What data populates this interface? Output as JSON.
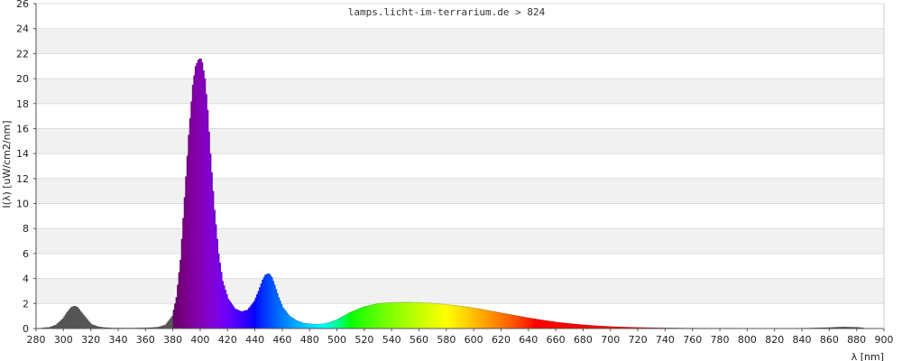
{
  "chart_data": {
    "type": "area",
    "title": "lamps.licht-im-terrarium.de > 824",
    "xlabel": "λ [nm]",
    "ylabel": "I(λ)  [uW/cm2/nm]",
    "xlim": [
      280,
      900
    ],
    "ylim": [
      0,
      26
    ],
    "x_ticks": [
      "280",
      "300",
      "320",
      "340",
      "360",
      "380",
      "400",
      "420",
      "440",
      "460",
      "480",
      "500",
      "520",
      "540",
      "560",
      "580",
      "600",
      "620",
      "640",
      "660",
      "680",
      "700",
      "720",
      "740",
      "760",
      "780",
      "800",
      "820",
      "840",
      "860",
      "880",
      "900"
    ],
    "y_ticks": [
      "0",
      "2",
      "4",
      "6",
      "8",
      "10",
      "12",
      "14",
      "16",
      "18",
      "20",
      "22",
      "24",
      "26"
    ],
    "grid": "horizontal-bands",
    "legend": "none",
    "series": [
      {
        "x": [
          284,
          290,
          295,
          300,
          303,
          306,
          308,
          310,
          312,
          315,
          318,
          320,
          325,
          330,
          335,
          340,
          345,
          350,
          355,
          360,
          365,
          370,
          375,
          380,
          383,
          386,
          389,
          392,
          395,
          397,
          399,
          400,
          401,
          403,
          405,
          407,
          410,
          413,
          416,
          420,
          425,
          430,
          435,
          440,
          443,
          446,
          448,
          450,
          452,
          454,
          457,
          460,
          465,
          470,
          475,
          480,
          485,
          490,
          495,
          500,
          505,
          510,
          520,
          530,
          540,
          550,
          560,
          570,
          580,
          590,
          600,
          610,
          620,
          630,
          640,
          650,
          660,
          670,
          680,
          690,
          700,
          710,
          720,
          730,
          740,
          750,
          760,
          770,
          780,
          790,
          800,
          810,
          820,
          830,
          840,
          850,
          860,
          870,
          880,
          885
        ],
        "y": [
          0.05,
          0.1,
          0.3,
          0.8,
          1.3,
          1.7,
          1.8,
          1.7,
          1.4,
          1.0,
          0.6,
          0.35,
          0.15,
          0.08,
          0.05,
          0.04,
          0.04,
          0.04,
          0.05,
          0.06,
          0.08,
          0.12,
          0.3,
          1.0,
          2.5,
          5.5,
          10.5,
          15.5,
          19.5,
          21.0,
          21.5,
          21.6,
          21.3,
          20.0,
          17.5,
          14.0,
          9.5,
          6.0,
          3.8,
          2.4,
          1.6,
          1.35,
          1.5,
          2.2,
          3.0,
          3.9,
          4.3,
          4.4,
          4.1,
          3.5,
          2.5,
          1.7,
          1.0,
          0.65,
          0.45,
          0.38,
          0.35,
          0.38,
          0.5,
          0.7,
          1.0,
          1.3,
          1.75,
          2.0,
          2.08,
          2.1,
          2.08,
          2.02,
          1.92,
          1.8,
          1.65,
          1.45,
          1.25,
          1.05,
          0.85,
          0.68,
          0.52,
          0.4,
          0.3,
          0.22,
          0.16,
          0.12,
          0.09,
          0.07,
          0.05,
          0.04,
          0.03,
          0.02,
          0.02,
          0.02,
          0.01,
          0.01,
          0.01,
          0.01,
          0.02,
          0.05,
          0.08,
          0.12,
          0.1,
          0.05
        ]
      }
    ]
  }
}
